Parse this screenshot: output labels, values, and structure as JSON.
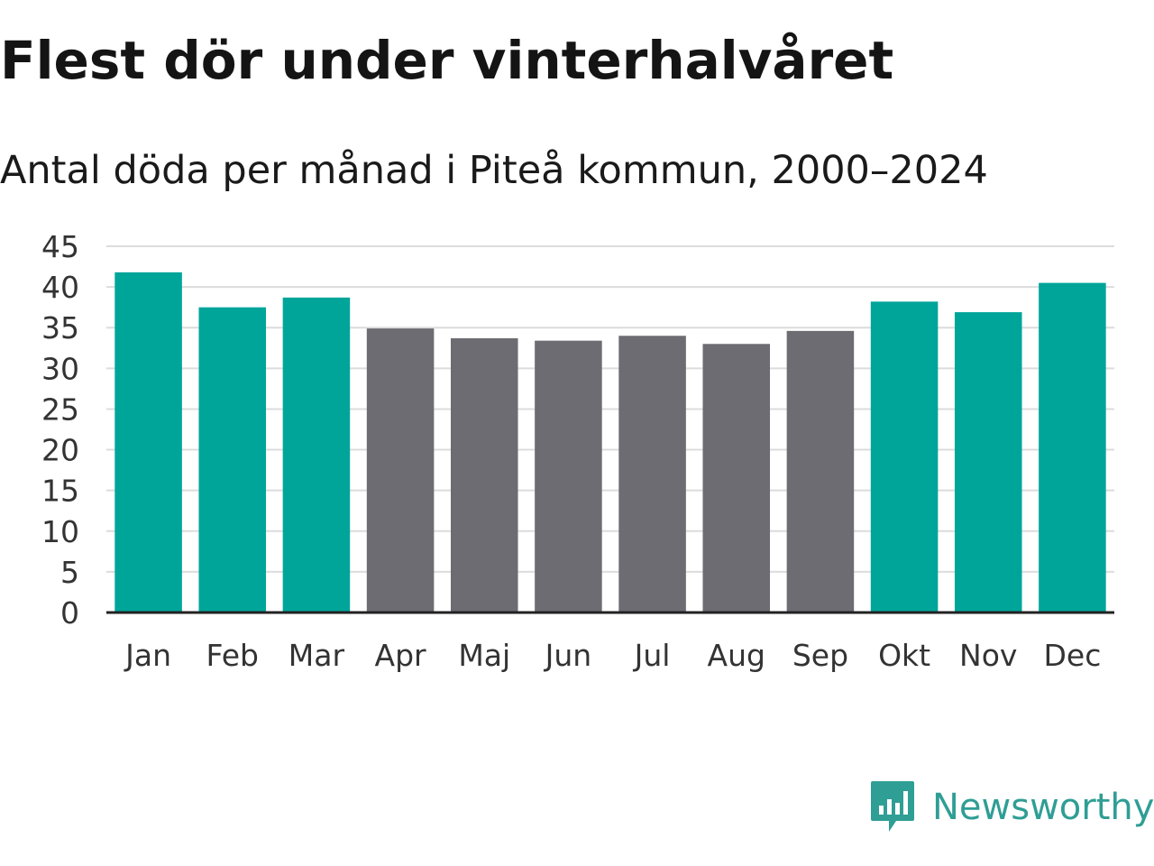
{
  "chart_data": {
    "type": "bar",
    "title": "Flest dör under vinterhalvåret",
    "subtitle": "Antal döda per månad i Piteå kommun, 2000–2024",
    "categories": [
      "Jan",
      "Feb",
      "Mar",
      "Apr",
      "Maj",
      "Jun",
      "Jul",
      "Aug",
      "Sep",
      "Okt",
      "Nov",
      "Dec"
    ],
    "values": [
      41.8,
      37.5,
      38.7,
      34.9,
      33.7,
      33.4,
      34.0,
      33.0,
      34.6,
      38.2,
      36.9,
      40.5
    ],
    "highlight": [
      true,
      true,
      true,
      false,
      false,
      false,
      false,
      false,
      false,
      true,
      true,
      true
    ],
    "xlabel": "",
    "ylabel": "",
    "ylim": [
      0,
      45
    ],
    "yticks": [
      0,
      5,
      10,
      15,
      20,
      25,
      30,
      35,
      40,
      45
    ],
    "grid": true,
    "colors": {
      "highlight": "#00a59a",
      "normal": "#6d6c72",
      "grid": "#dcdcdc",
      "axis": "#222222"
    }
  },
  "branding": {
    "name": "Newsworthy",
    "icon": "newsworthy-logo-icon",
    "color": "#2f9e95"
  }
}
